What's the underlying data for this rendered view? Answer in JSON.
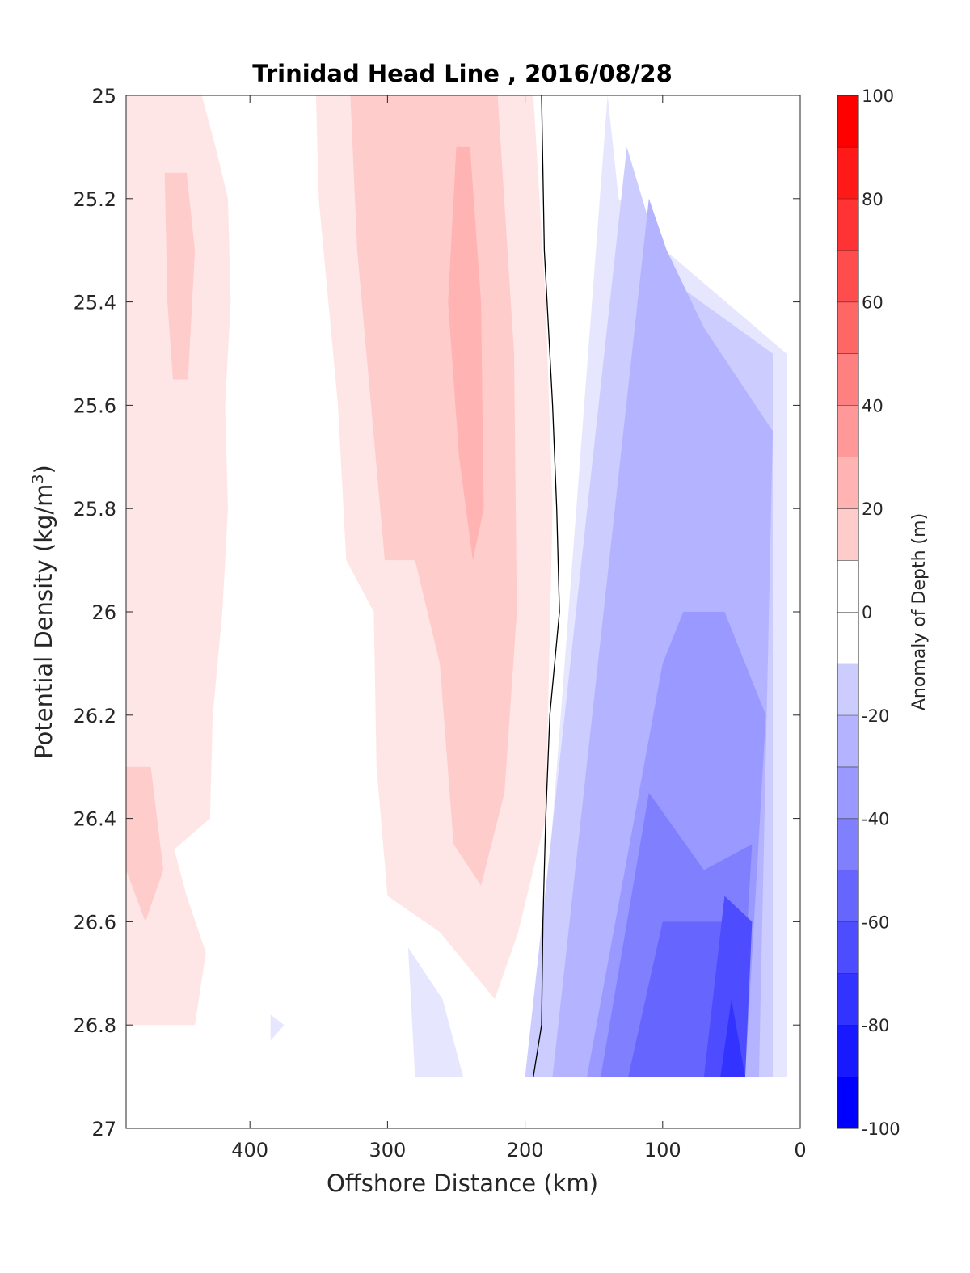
{
  "chart_data": {
    "type": "heatmap",
    "subtype": "filled-contour",
    "title": "Trinidad Head Line , 2016/08/28",
    "xlabel": "Offshore Distance (km)",
    "ylabel_base": "Potential Density (kg/m",
    "ylabel_sup": "3",
    "ylabel_end": ")",
    "colorbar_label": "Anomaly of Depth (m)",
    "xlim": [
      490,
      0
    ],
    "ylim": [
      25,
      27
    ],
    "y_reversed": true,
    "x_reversed": true,
    "x_ticks": [
      400,
      300,
      200,
      100,
      0
    ],
    "y_ticks": [
      25,
      25.2,
      25.4,
      25.6,
      25.8,
      26,
      26.2,
      26.4,
      26.6,
      26.8,
      27
    ],
    "colorbar_levels": [
      -100,
      -90,
      -80,
      -70,
      -60,
      -50,
      -40,
      -30,
      -20,
      -10,
      0,
      10,
      20,
      30,
      40,
      50,
      60,
      70,
      80,
      90,
      100
    ],
    "colorbar_ticks": [
      100,
      80,
      60,
      40,
      20,
      0,
      -20,
      -40,
      -60,
      -80,
      -100
    ],
    "zero_contour": [
      [
        [
          188,
          25
        ],
        [
          186,
          25.3
        ],
        [
          180,
          25.6
        ],
        [
          177,
          25.8
        ],
        [
          175,
          26
        ],
        [
          182,
          26.2
        ],
        [
          185,
          26.4
        ],
        [
          187,
          26.6
        ],
        [
          188,
          26.8
        ],
        [
          194,
          26.9
        ]
      ]
    ],
    "anomaly_regions": [
      {
        "level": 10,
        "points": [
          [
            490,
            25
          ],
          [
            435,
            25
          ],
          [
            425,
            25.1
          ],
          [
            416,
            25.2
          ],
          [
            414,
            25.4
          ],
          [
            418,
            25.6
          ],
          [
            416,
            25.8
          ],
          [
            420,
            26
          ],
          [
            427,
            26.2
          ],
          [
            429,
            26.4
          ],
          [
            455,
            26.46
          ],
          [
            446,
            26.55
          ],
          [
            432,
            26.66
          ],
          [
            440,
            26.8
          ],
          [
            490,
            26.8
          ]
        ]
      },
      {
        "level": 10,
        "points": [
          [
            352,
            25
          ],
          [
            194,
            25
          ],
          [
            185,
            25.4
          ],
          [
            180,
            25.8
          ],
          [
            185,
            26.4
          ],
          [
            205,
            26.62
          ],
          [
            222,
            26.75
          ],
          [
            262,
            26.62
          ],
          [
            300,
            26.55
          ],
          [
            308,
            26.3
          ],
          [
            310,
            26.0
          ],
          [
            330,
            25.9
          ],
          [
            336,
            25.6
          ],
          [
            350,
            25.2
          ]
        ]
      },
      {
        "level": 20,
        "points": [
          [
            462,
            25.15
          ],
          [
            446,
            25.15
          ],
          [
            440,
            25.3
          ],
          [
            445,
            25.55
          ],
          [
            456,
            25.55
          ],
          [
            460,
            25.4
          ]
        ]
      },
      {
        "level": 20,
        "points": [
          [
            490,
            26.3
          ],
          [
            472,
            26.3
          ],
          [
            463,
            26.5
          ],
          [
            476,
            26.6
          ],
          [
            490,
            26.5
          ]
        ]
      },
      {
        "level": 20,
        "points": [
          [
            327,
            25
          ],
          [
            220,
            25
          ],
          [
            208,
            25.5
          ],
          [
            206,
            26.0
          ],
          [
            215,
            26.35
          ],
          [
            232,
            26.53
          ],
          [
            252,
            26.45
          ],
          [
            262,
            26.1
          ],
          [
            280,
            25.9
          ],
          [
            302,
            25.9
          ],
          [
            312,
            25.6
          ],
          [
            322,
            25.3
          ]
        ]
      },
      {
        "level": 30,
        "points": [
          [
            250,
            25.1
          ],
          [
            240,
            25.1
          ],
          [
            232,
            25.4
          ],
          [
            230,
            25.8
          ],
          [
            238,
            25.9
          ],
          [
            248,
            25.7
          ],
          [
            256,
            25.4
          ]
        ]
      },
      {
        "level": -10,
        "points": [
          [
            140,
            25
          ],
          [
            194,
            26.9
          ],
          [
            10,
            26.9
          ],
          [
            10,
            25.5
          ],
          [
            98,
            25.3
          ],
          [
            132,
            25.2
          ]
        ]
      },
      {
        "level": -20,
        "points": [
          [
            126,
            25.1
          ],
          [
            200,
            26.9
          ],
          [
            20,
            26.9
          ],
          [
            20,
            25.5
          ],
          [
            98,
            25.35
          ]
        ]
      },
      {
        "level": -30,
        "points": [
          [
            110,
            25.2
          ],
          [
            180,
            26.9
          ],
          [
            30,
            26.9
          ],
          [
            20,
            25.65
          ],
          [
            70,
            25.45
          ],
          [
            97,
            25.3
          ]
        ]
      },
      {
        "level": -40,
        "points": [
          [
            100,
            26.1
          ],
          [
            155,
            26.9
          ],
          [
            40,
            26.9
          ],
          [
            25,
            26.2
          ],
          [
            55,
            26.0
          ],
          [
            85,
            26.0
          ]
        ]
      },
      {
        "level": -50,
        "points": [
          [
            110,
            26.35
          ],
          [
            145,
            26.9
          ],
          [
            45,
            26.9
          ],
          [
            35,
            26.45
          ],
          [
            70,
            26.5
          ]
        ]
      },
      {
        "level": -60,
        "points": [
          [
            100,
            26.6
          ],
          [
            125,
            26.9
          ],
          [
            45,
            26.9
          ],
          [
            40,
            26.6
          ]
        ]
      },
      {
        "level": -70,
        "points": [
          [
            55,
            26.55
          ],
          [
            70,
            26.9
          ],
          [
            40,
            26.9
          ],
          [
            35,
            26.6
          ]
        ]
      },
      {
        "level": -80,
        "points": [
          [
            50,
            26.75
          ],
          [
            58,
            26.9
          ],
          [
            40,
            26.9
          ]
        ]
      },
      {
        "level": -10,
        "points": [
          [
            285,
            26.65
          ],
          [
            280,
            26.9
          ],
          [
            245,
            26.9
          ],
          [
            260,
            26.75
          ]
        ]
      },
      {
        "level": -10,
        "points": [
          [
            385,
            26.78
          ],
          [
            375,
            26.8
          ],
          [
            385,
            26.83
          ]
        ]
      }
    ]
  }
}
